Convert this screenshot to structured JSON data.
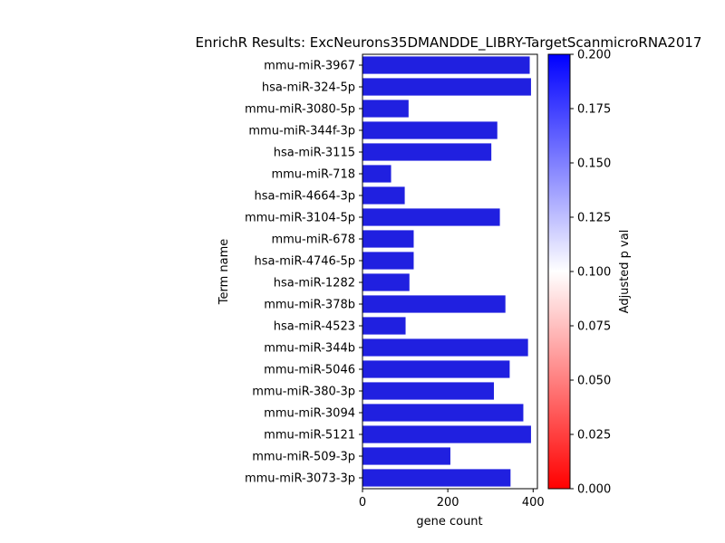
{
  "chart_data": {
    "type": "bar",
    "orientation": "horizontal",
    "title": "EnrichR Results: ExcNeurons35DMANDDE_LIBRY-TargetScanmicroRNA2017",
    "xlabel": "gene count",
    "ylabel": "Term name",
    "xlim": [
      0,
      410
    ],
    "xticks": [
      0,
      200,
      400
    ],
    "categories": [
      "mmu-miR-3967",
      "hsa-miR-324-5p",
      "mmu-miR-3080-5p",
      "mmu-miR-344f-3p",
      "hsa-miR-3115",
      "mmu-miR-718",
      "hsa-miR-4664-3p",
      "mmu-miR-3104-5p",
      "mmu-miR-678",
      "hsa-miR-4746-5p",
      "hsa-miR-1282",
      "mmu-miR-378b",
      "hsa-miR-4523",
      "mmu-miR-344b",
      "mmu-miR-5046",
      "mmu-miR-380-3p",
      "mmu-miR-3094",
      "mmu-miR-5121",
      "mmu-miR-509-3p",
      "mmu-miR-3073-3p"
    ],
    "values": [
      392,
      395,
      108,
      316,
      302,
      67,
      99,
      322,
      120,
      120,
      110,
      335,
      101,
      388,
      345,
      308,
      377,
      395,
      206,
      347
    ],
    "adjusted_p": [
      0.2,
      0.2,
      0.2,
      0.2,
      0.2,
      0.2,
      0.2,
      0.2,
      0.2,
      0.2,
      0.2,
      0.2,
      0.2,
      0.2,
      0.2,
      0.2,
      0.2,
      0.2,
      0.2,
      0.2
    ],
    "bar_color": "#2020e0",
    "grid": false,
    "legend": "none",
    "colorbar": {
      "label": "Adjusted p val",
      "min": 0.0,
      "max": 0.2,
      "ticks": [
        "0.000",
        "0.025",
        "0.050",
        "0.075",
        "0.100",
        "0.125",
        "0.150",
        "0.175",
        "0.200"
      ],
      "colors": [
        "#ff0000",
        "#ffffff",
        "#0000ff"
      ]
    }
  }
}
